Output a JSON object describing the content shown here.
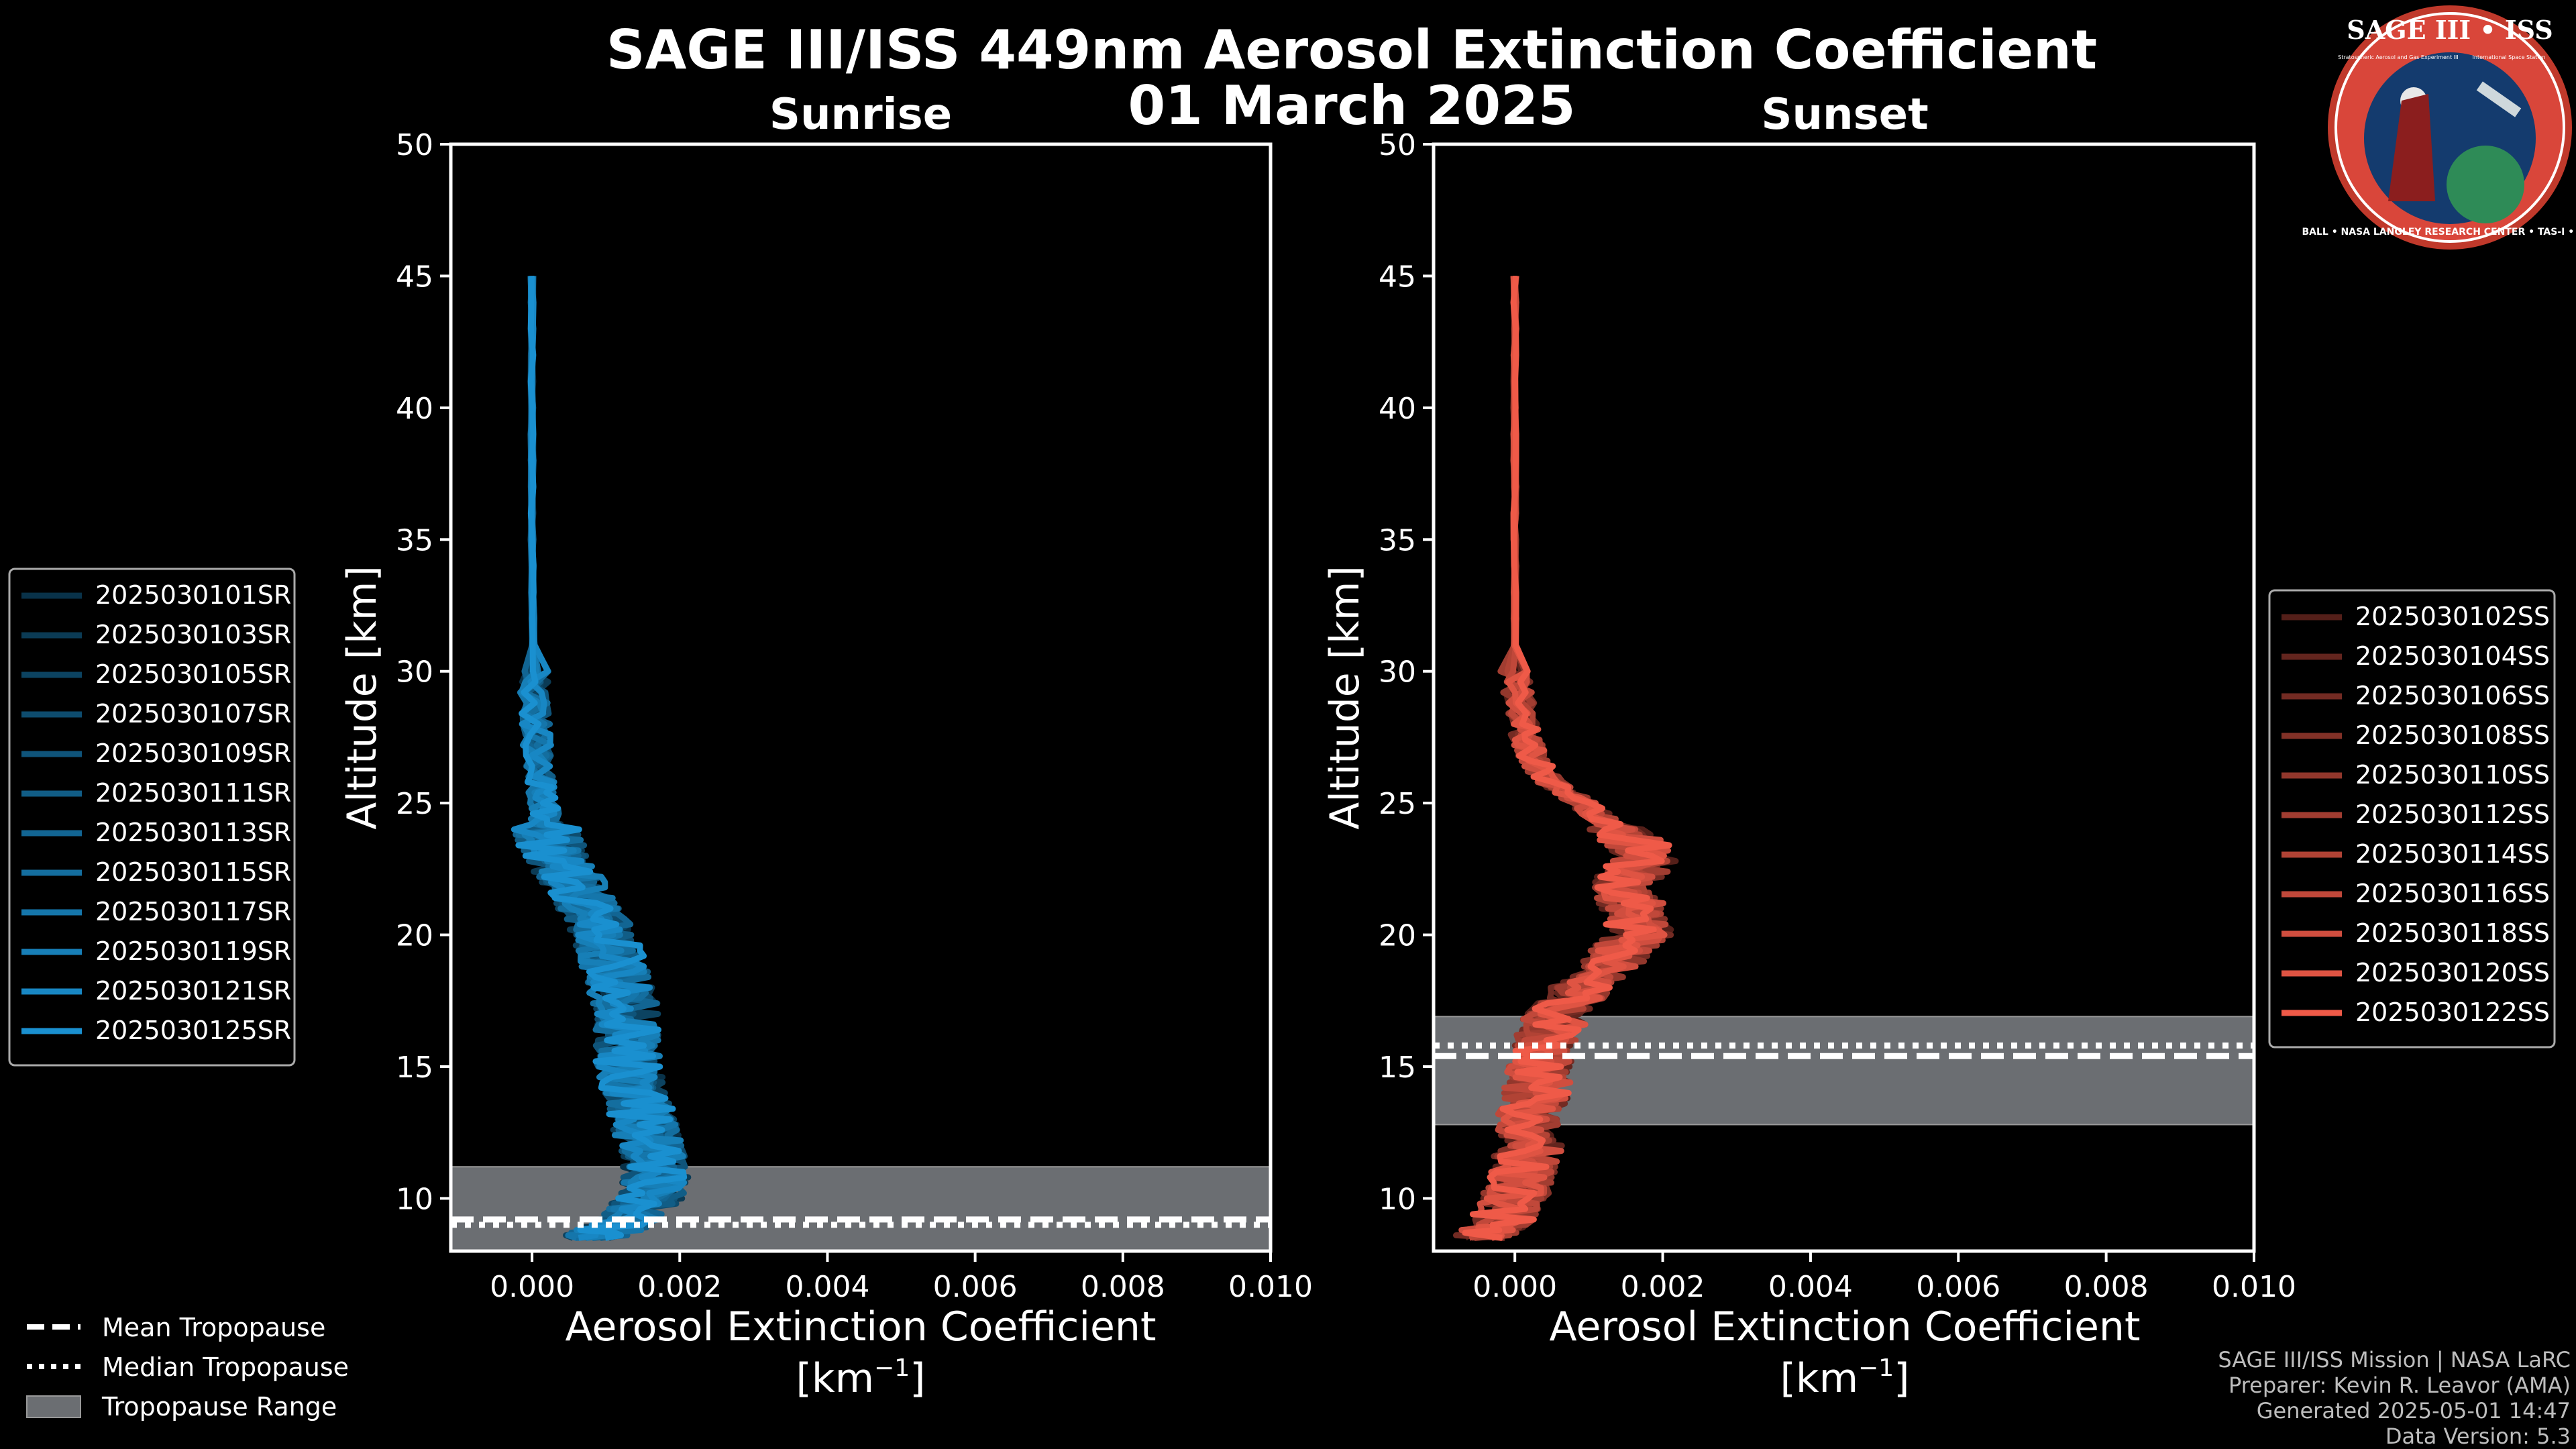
{
  "title_line1": "SAGE III/ISS 449nm Aerosol Extinction Coefficient",
  "title_line2": "01 March 2025",
  "logo": {
    "top": "SAGE III • ISS",
    "ring": "BALL • NASA LANGLEY RESEARCH CENTER • TAS-I • ESA",
    "tag1": "Stratospheric Aerosol and Gas Experiment III",
    "tag2": "International Space Station"
  },
  "colors": {
    "sunrise": "#1a90d0",
    "sunset": "#ef5a48",
    "tropopause_fill": "#6b6e72",
    "background": "#000000"
  },
  "chart_data": [
    {
      "type": "line",
      "title": "Sunrise",
      "xlabel": "Aerosol Extinction Coefficient",
      "xunit": "[km$^{-1}$]",
      "ylabel": "Altitude [km]",
      "xlim": [
        -0.0011,
        0.01
      ],
      "ylim": [
        8,
        50
      ],
      "xticks": [
        "0.000",
        "0.002",
        "0.004",
        "0.006",
        "0.008",
        "0.010"
      ],
      "yticks": [
        "10",
        "15",
        "20",
        "25",
        "30",
        "35",
        "40",
        "45",
        "50"
      ],
      "legend_position": "left",
      "series_names": [
        "2025030101SR",
        "2025030103SR",
        "2025030105SR",
        "2025030107SR",
        "2025030109SR",
        "2025030111SR",
        "2025030113SR",
        "2025030115SR",
        "2025030117SR",
        "2025030119SR",
        "2025030121SR",
        "2025030125SR"
      ],
      "base_profile": {
        "altitude": [
          45,
          40,
          35,
          30,
          28,
          26,
          25,
          24,
          23,
          22,
          21,
          20,
          19,
          18,
          17,
          16,
          15,
          14,
          13,
          12,
          11,
          10,
          9,
          8.5
        ],
        "extinction": [
          0.0,
          0.0,
          0.0,
          2e-05,
          5e-05,
          0.0001,
          0.00015,
          0.0002,
          0.0003,
          0.00055,
          0.0008,
          0.001,
          0.0011,
          0.0012,
          0.0013,
          0.0013,
          0.0013,
          0.0014,
          0.0015,
          0.0016,
          0.0017,
          0.0016,
          0.0012,
          0.0008
        ]
      },
      "tropopause": {
        "mean": 9.2,
        "median": 9.0,
        "min": 7.5,
        "max": 11.2
      }
    },
    {
      "type": "line",
      "title": "Sunset",
      "xlabel": "Aerosol Extinction Coefficient",
      "xunit": "[km$^{-1}$]",
      "ylabel": "Altitude [km]",
      "xlim": [
        -0.0011,
        0.01
      ],
      "ylim": [
        8,
        50
      ],
      "xticks": [
        "0.000",
        "0.002",
        "0.004",
        "0.006",
        "0.008",
        "0.010"
      ],
      "yticks": [
        "10",
        "15",
        "20",
        "25",
        "30",
        "35",
        "40",
        "45",
        "50"
      ],
      "legend_position": "right",
      "series_names": [
        "2025030102SS",
        "2025030104SS",
        "2025030106SS",
        "2025030108SS",
        "2025030110SS",
        "2025030112SS",
        "2025030114SS",
        "2025030116SS",
        "2025030118SS",
        "2025030120SS",
        "2025030122SS"
      ],
      "base_profile": {
        "altitude": [
          45,
          40,
          35,
          30,
          28,
          27,
          26,
          25,
          24,
          23,
          22,
          21,
          20,
          19,
          18,
          17,
          16,
          15,
          14,
          13,
          12,
          11,
          10,
          9,
          8.5
        ],
        "extinction": [
          0.0,
          0.0,
          0.0,
          0.0,
          0.0001,
          0.0002,
          0.0004,
          0.0009,
          0.0014,
          0.0018,
          0.0015,
          0.0016,
          0.0017,
          0.0013,
          0.0009,
          0.0006,
          0.0004,
          0.0003,
          0.0003,
          0.0002,
          0.0002,
          0.0001,
          0.0,
          -0.0002,
          -0.0004
        ]
      },
      "tropopause": {
        "mean": 15.4,
        "median": 15.8,
        "min": 12.8,
        "max": 16.9
      }
    }
  ],
  "tropopause_legend": [
    "Mean Tropopause",
    "Median Tropopause",
    "Tropopause Range"
  ],
  "credits": [
    "SAGE III/ISS Mission | NASA LaRC",
    "Preparer: Kevin R. Leavor (AMA)",
    "Generated 2025-05-01 14:47",
    "Data Version: 5.3"
  ]
}
